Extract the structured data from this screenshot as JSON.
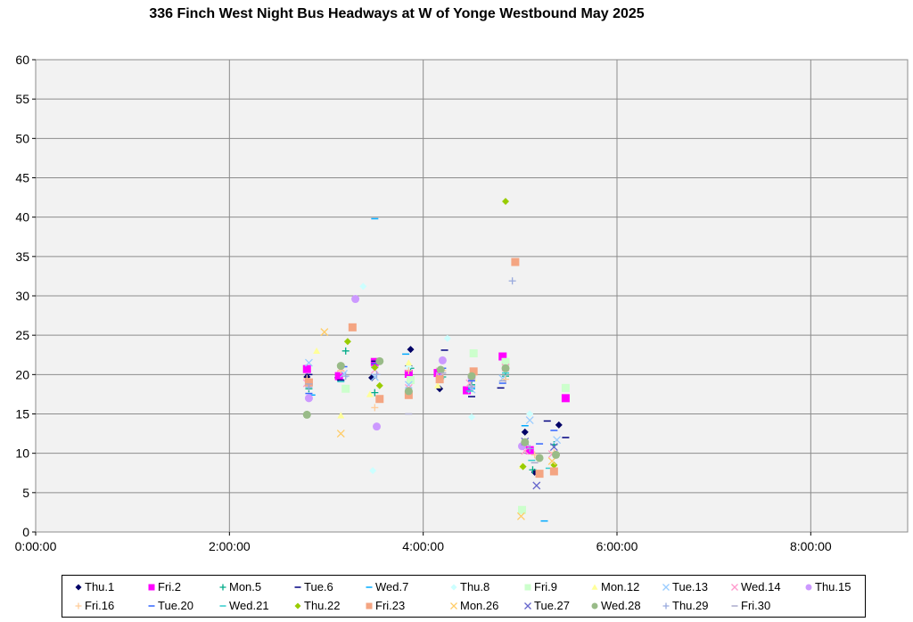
{
  "chart_data": {
    "type": "scatter",
    "title": "336 Finch West Night Bus Headways at W of Yonge Westbound May 2025",
    "xlabel": "",
    "ylabel": "",
    "x_unit": "time of day (hours)",
    "xlim": [
      0,
      9
    ],
    "ylim": [
      0,
      60
    ],
    "x_ticks": [
      {
        "value": 0,
        "label": "0:00:00"
      },
      {
        "value": 2,
        "label": "2:00:00"
      },
      {
        "value": 4,
        "label": "4:00:00"
      },
      {
        "value": 6,
        "label": "6:00:00"
      },
      {
        "value": 8,
        "label": "8:00:00"
      }
    ],
    "y_ticks": [
      0,
      5,
      10,
      15,
      20,
      25,
      30,
      35,
      40,
      45,
      50,
      55,
      60
    ],
    "grid": true,
    "plot_background": "#f2f2f2",
    "legend_position": "bottom",
    "series": [
      {
        "name": "Thu.1",
        "color": "#000066",
        "marker": "diamond",
        "points": [
          [
            2.8,
            19.7
          ],
          [
            3.12,
            19.6
          ],
          [
            3.47,
            19.6
          ],
          [
            3.87,
            23.2
          ],
          [
            4.17,
            18.2
          ],
          [
            4.5,
            19.5
          ],
          [
            5.05,
            12.7
          ],
          [
            5.15,
            7.6
          ],
          [
            5.4,
            13.6
          ]
        ]
      },
      {
        "name": "Fri.2",
        "color": "#ff00ff",
        "marker": "square",
        "points": [
          [
            2.8,
            20.7
          ],
          [
            3.13,
            19.8
          ],
          [
            3.5,
            21.6
          ],
          [
            3.85,
            20.1
          ],
          [
            4.15,
            20.2
          ],
          [
            4.45,
            18.0
          ],
          [
            4.82,
            22.3
          ],
          [
            5.1,
            10.4
          ],
          [
            5.47,
            17.0
          ]
        ]
      },
      {
        "name": "Mon.5",
        "color": "#00aa88",
        "marker": "plus",
        "points": [
          [
            2.82,
            18.2
          ],
          [
            3.2,
            23.0
          ],
          [
            3.5,
            17.7
          ],
          [
            3.87,
            20.8
          ],
          [
            4.2,
            19.7
          ],
          [
            4.5,
            18.7
          ],
          [
            4.85,
            19.8
          ],
          [
            5.13,
            7.9
          ],
          [
            5.35,
            11.1
          ]
        ]
      },
      {
        "name": "Tue.6",
        "color": "#000080",
        "marker": "dash",
        "points": [
          [
            2.82,
            20.0
          ],
          [
            3.15,
            19.3
          ],
          [
            3.5,
            21.7
          ],
          [
            3.85,
            21.1
          ],
          [
            4.22,
            23.1
          ],
          [
            4.5,
            17.2
          ],
          [
            4.8,
            18.3
          ],
          [
            5.28,
            14.1
          ],
          [
            5.47,
            12.0
          ]
        ]
      },
      {
        "name": "Wed.7",
        "color": "#00aaff",
        "marker": "dash",
        "points": [
          [
            2.85,
            17.4
          ],
          [
            3.5,
            39.8
          ],
          [
            3.82,
            22.6
          ],
          [
            4.5,
            18.2
          ],
          [
            5.25,
            1.4
          ],
          [
            5.05,
            13.5
          ]
        ]
      },
      {
        "name": "Thu.8",
        "color": "#ccffff",
        "marker": "diamond",
        "points": [
          [
            3.38,
            31.2
          ],
          [
            3.48,
            7.8
          ],
          [
            3.85,
            21.0
          ],
          [
            4.25,
            24.6
          ],
          [
            4.5,
            14.6
          ],
          [
            5.1,
            15.0
          ]
        ]
      },
      {
        "name": "Fri.9",
        "color": "#ccffcc",
        "marker": "square",
        "points": [
          [
            3.2,
            18.2
          ],
          [
            3.87,
            19.3
          ],
          [
            4.52,
            22.7
          ],
          [
            5.02,
            2.8
          ],
          [
            5.47,
            18.3
          ],
          [
            4.85,
            21.6
          ]
        ]
      },
      {
        "name": "Mon.12",
        "color": "#ffff99",
        "marker": "triangle",
        "points": [
          [
            2.9,
            23.0
          ],
          [
            3.15,
            14.8
          ],
          [
            3.45,
            17.5
          ],
          [
            3.85,
            21.5
          ],
          [
            4.15,
            18.6
          ],
          [
            4.52,
            19.5
          ],
          [
            5.02,
            8.4
          ]
        ]
      },
      {
        "name": "Tue.13",
        "color": "#99ccff",
        "marker": "x",
        "points": [
          [
            2.82,
            21.5
          ],
          [
            3.18,
            20.1
          ],
          [
            3.5,
            19.7
          ],
          [
            3.85,
            18.7
          ],
          [
            4.17,
            19.8
          ],
          [
            4.5,
            18.1
          ],
          [
            4.82,
            19.5
          ],
          [
            5.1,
            14.2
          ],
          [
            5.38,
            11.7
          ]
        ]
      },
      {
        "name": "Wed.14",
        "color": "#ff99cc",
        "marker": "x",
        "points": [
          [
            2.8,
            18.9
          ],
          [
            3.15,
            20.8
          ],
          [
            3.5,
            20.6
          ],
          [
            3.85,
            18.3
          ],
          [
            4.17,
            20.4
          ],
          [
            4.48,
            18.9
          ],
          [
            4.85,
            20.9
          ],
          [
            5.05,
            10.3
          ],
          [
            5.33,
            9.9
          ]
        ]
      },
      {
        "name": "Thu.15",
        "color": "#cc99ff",
        "marker": "circle",
        "points": [
          [
            3.3,
            29.6
          ],
          [
            3.52,
            13.4
          ],
          [
            4.2,
            21.8
          ],
          [
            2.82,
            17.0
          ],
          [
            5.02,
            10.9
          ],
          [
            4.5,
            19.6
          ]
        ]
      },
      {
        "name": "Fri.16",
        "color": "#ffcc99",
        "marker": "plus",
        "points": [
          [
            2.8,
            19.5
          ],
          [
            3.15,
            20.5
          ],
          [
            3.5,
            15.8
          ],
          [
            3.85,
            20.5
          ],
          [
            4.2,
            20.5
          ],
          [
            4.5,
            20.0
          ],
          [
            4.85,
            19.4
          ],
          [
            5.15,
            9.8
          ],
          [
            5.35,
            10.1
          ]
        ]
      },
      {
        "name": "Tue.20",
        "color": "#3366ff",
        "marker": "dash",
        "points": [
          [
            2.82,
            17.6
          ],
          [
            3.18,
            21.0
          ],
          [
            3.5,
            21.4
          ],
          [
            3.85,
            18.0
          ],
          [
            4.2,
            20.8
          ],
          [
            4.5,
            19.2
          ],
          [
            4.82,
            18.9
          ],
          [
            5.2,
            11.2
          ],
          [
            5.35,
            12.9
          ]
        ]
      },
      {
        "name": "Wed.21",
        "color": "#33cccc",
        "marker": "dash",
        "points": [
          [
            2.82,
            19.2
          ],
          [
            3.15,
            19.1
          ],
          [
            3.5,
            20.9
          ],
          [
            3.85,
            17.8
          ],
          [
            4.18,
            19.5
          ],
          [
            4.48,
            17.9
          ],
          [
            4.85,
            20.2
          ],
          [
            5.12,
            9.1
          ],
          [
            5.3,
            8.1
          ]
        ]
      },
      {
        "name": "Thu.22",
        "color": "#99cc00",
        "marker": "diamond",
        "points": [
          [
            3.22,
            24.2
          ],
          [
            3.55,
            18.6
          ],
          [
            4.85,
            42.0
          ],
          [
            5.03,
            8.3
          ],
          [
            5.35,
            8.5
          ],
          [
            3.85,
            17.9
          ],
          [
            3.5,
            20.9
          ]
        ]
      },
      {
        "name": "Fri.23",
        "color": "#f4a582",
        "marker": "square",
        "points": [
          [
            2.82,
            19.0
          ],
          [
            3.27,
            26.0
          ],
          [
            3.55,
            16.9
          ],
          [
            3.85,
            17.4
          ],
          [
            4.17,
            19.4
          ],
          [
            4.52,
            20.4
          ],
          [
            4.95,
            34.3
          ],
          [
            5.2,
            7.4
          ],
          [
            5.35,
            7.7
          ]
        ]
      },
      {
        "name": "Mon.26",
        "color": "#ffcc66",
        "marker": "x",
        "points": [
          [
            2.98,
            25.4
          ],
          [
            3.15,
            12.5
          ],
          [
            5.01,
            2.0
          ],
          [
            5.33,
            9.0
          ]
        ]
      },
      {
        "name": "Tue.27",
        "color": "#6666cc",
        "marker": "x",
        "points": [
          [
            5.17,
            5.9
          ],
          [
            5.35,
            10.8
          ],
          [
            5.05,
            11.5
          ]
        ]
      },
      {
        "name": "Wed.28",
        "color": "#99bb88",
        "marker": "circle",
        "points": [
          [
            2.8,
            14.9
          ],
          [
            3.15,
            21.1
          ],
          [
            3.55,
            21.7
          ],
          [
            3.85,
            17.9
          ],
          [
            4.18,
            20.6
          ],
          [
            4.5,
            19.8
          ],
          [
            4.85,
            20.8
          ],
          [
            5.05,
            11.4
          ],
          [
            5.2,
            9.4
          ],
          [
            5.37,
            9.8
          ]
        ]
      },
      {
        "name": "Thu.29",
        "color": "#99aadd",
        "marker": "plus",
        "points": [
          [
            4.92,
            31.9
          ],
          [
            2.82,
            18.4
          ],
          [
            3.2,
            19.8
          ],
          [
            3.52,
            20.0
          ],
          [
            4.5,
            18.4
          ],
          [
            5.1,
            10.6
          ]
        ]
      },
      {
        "name": "Fri.30",
        "color": "#aaaacc",
        "marker": "dash",
        "points": [
          [
            3.85,
            15.0
          ],
          [
            2.82,
            18.8
          ],
          [
            4.2,
            20.2
          ],
          [
            4.82,
            19.2
          ],
          [
            5.15,
            8.8
          ]
        ]
      }
    ]
  }
}
